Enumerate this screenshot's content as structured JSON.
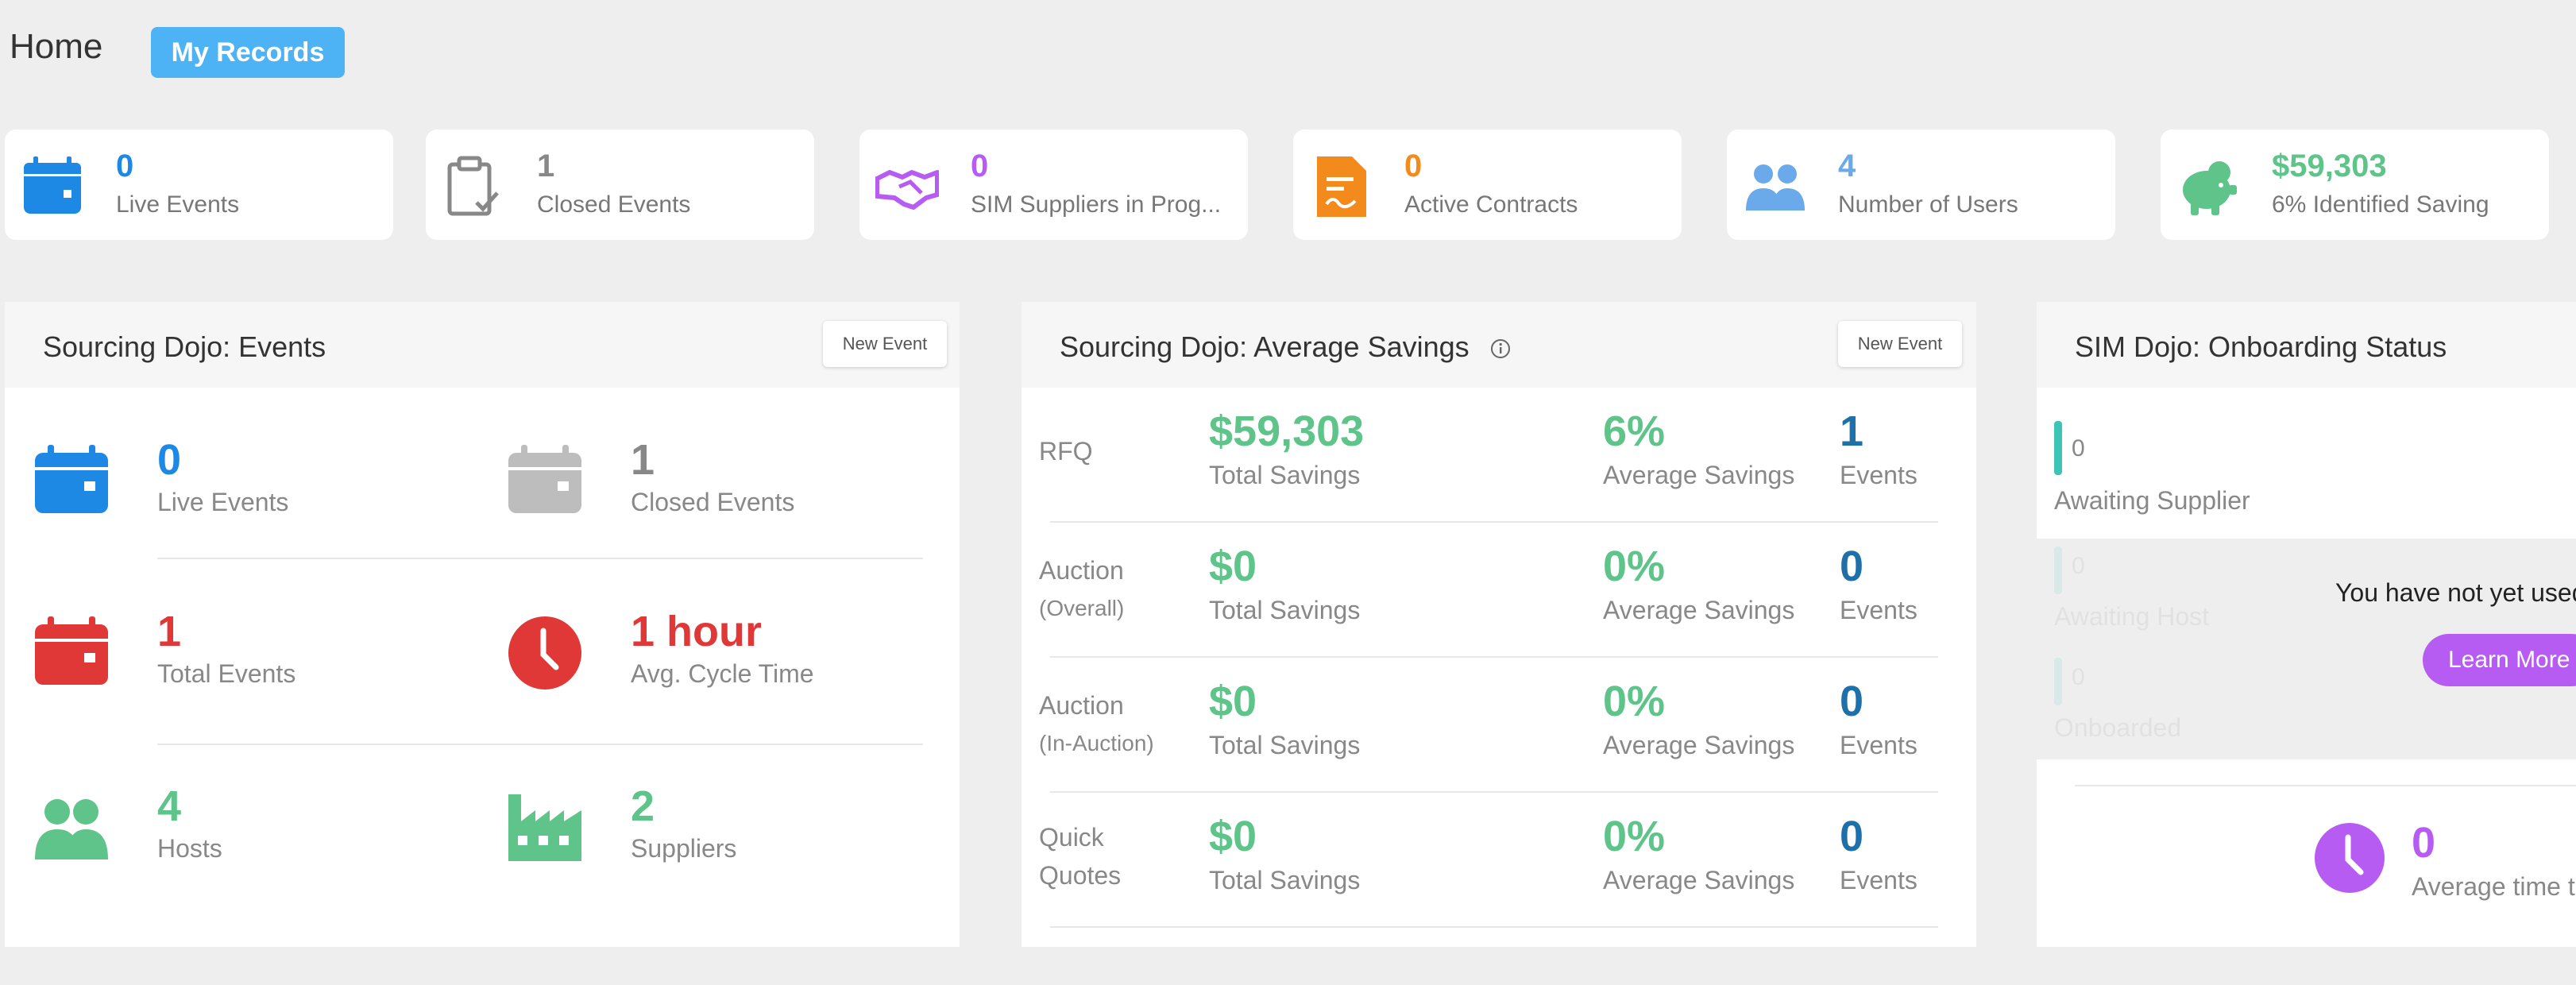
{
  "header": {
    "title": "Home",
    "my_records": "My Records"
  },
  "stats": [
    {
      "value": "0",
      "label": "Live Events",
      "icon": "calendar-icon",
      "color": "#1e88e5"
    },
    {
      "value": "1",
      "label": "Closed Events",
      "icon": "clipboard-check-icon",
      "color": "#888888"
    },
    {
      "value": "0",
      "label": "SIM Suppliers in Prog...",
      "icon": "handshake-icon",
      "color": "#b65cf2"
    },
    {
      "value": "0",
      "label": "Active Contracts",
      "icon": "contract-icon",
      "color": "#f28b1b"
    },
    {
      "value": "4",
      "label": "Number of Users",
      "icon": "users-icon",
      "color": "#6aa9ea"
    },
    {
      "value": "$59,303",
      "label": "6% Identified Saving",
      "icon": "piggy-bank-icon",
      "color": "#5ec48a"
    }
  ],
  "events_panel": {
    "title": "Sourcing Dojo: Events",
    "new_event": "New Event",
    "metrics": [
      {
        "value": "0",
        "label": "Live Events",
        "icon": "calendar-icon",
        "color": "#1e88e5"
      },
      {
        "value": "1",
        "label": "Closed Events",
        "icon": "calendar-icon",
        "color": "#999999"
      },
      {
        "value": "1",
        "label": "Total Events",
        "icon": "calendar-icon",
        "color": "#e03737"
      },
      {
        "value": "1 hour",
        "label": "Avg. Cycle Time",
        "icon": "clock-icon",
        "color": "#e03737"
      },
      {
        "value": "4",
        "label": "Hosts",
        "icon": "users-icon",
        "color": "#5ec48a"
      },
      {
        "value": "2",
        "label": "Suppliers",
        "icon": "factory-icon",
        "color": "#5ec48a"
      }
    ]
  },
  "savings_panel": {
    "title": "Sourcing Dojo: Average Savings",
    "new_event": "New Event",
    "total_label": "Total Savings",
    "avg_label": "Average Savings",
    "events_label": "Events",
    "rows": [
      {
        "label": "RFQ",
        "sub": "",
        "total": "$59,303",
        "avg": "6%",
        "events": "1"
      },
      {
        "label": "Auction",
        "sub": "(Overall)",
        "total": "$0",
        "avg": "0%",
        "events": "0"
      },
      {
        "label": "Auction",
        "sub": "(In-Auction)",
        "total": "$0",
        "avg": "0%",
        "events": "0"
      },
      {
        "label": "Quick",
        "sub": "Quotes",
        "total": "$0",
        "avg": "0%",
        "events": "0"
      }
    ]
  },
  "onboarding_panel": {
    "title": "SIM Dojo: Onboarding Status",
    "statuses": [
      {
        "value": "0",
        "label": "Awaiting Supplier"
      },
      {
        "value": "0",
        "label": "Awaiting Host"
      },
      {
        "value": "0",
        "label": "Onboarded"
      }
    ],
    "notice": "You have not yet used",
    "learn_more": "Learn More",
    "avg_value": "0",
    "avg_label": "Average time t"
  }
}
